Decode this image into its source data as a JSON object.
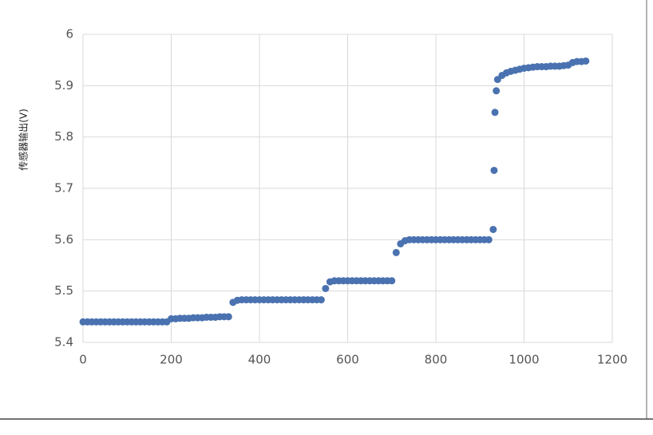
{
  "chart_data": {
    "type": "scatter",
    "y_label": "传感器输出(V)",
    "x": [
      0,
      10,
      20,
      30,
      40,
      50,
      60,
      70,
      80,
      90,
      100,
      110,
      120,
      130,
      140,
      150,
      160,
      170,
      180,
      190,
      200,
      210,
      220,
      230,
      240,
      250,
      260,
      270,
      280,
      290,
      300,
      310,
      320,
      330,
      340,
      350,
      360,
      370,
      380,
      390,
      400,
      410,
      420,
      430,
      440,
      450,
      460,
      470,
      480,
      490,
      500,
      510,
      520,
      530,
      540,
      550,
      560,
      570,
      580,
      590,
      600,
      610,
      620,
      630,
      640,
      650,
      660,
      670,
      680,
      690,
      700,
      710,
      720,
      730,
      740,
      750,
      760,
      770,
      780,
      790,
      800,
      810,
      820,
      830,
      840,
      850,
      860,
      870,
      880,
      890,
      900,
      910,
      920,
      930,
      932,
      934,
      937,
      940,
      950,
      960,
      970,
      980,
      990,
      1000,
      1010,
      1020,
      1030,
      1040,
      1050,
      1060,
      1070,
      1080,
      1090,
      1100,
      1110,
      1120,
      1130,
      1140
    ],
    "series": [
      {
        "color": "#4a72b0",
        "values": [
          5.44,
          5.44,
          5.44,
          5.44,
          5.44,
          5.44,
          5.44,
          5.44,
          5.44,
          5.44,
          5.44,
          5.44,
          5.44,
          5.44,
          5.44,
          5.44,
          5.44,
          5.44,
          5.44,
          5.44,
          5.446,
          5.446,
          5.447,
          5.447,
          5.447,
          5.448,
          5.448,
          5.448,
          5.449,
          5.449,
          5.449,
          5.45,
          5.45,
          5.45,
          5.478,
          5.482,
          5.483,
          5.483,
          5.483,
          5.483,
          5.483,
          5.483,
          5.483,
          5.483,
          5.483,
          5.483,
          5.483,
          5.483,
          5.483,
          5.483,
          5.483,
          5.483,
          5.483,
          5.483,
          5.483,
          5.505,
          5.518,
          5.52,
          5.52,
          5.52,
          5.52,
          5.52,
          5.52,
          5.52,
          5.52,
          5.52,
          5.52,
          5.52,
          5.52,
          5.52,
          5.52,
          5.575,
          5.592,
          5.598,
          5.6,
          5.6,
          5.6,
          5.6,
          5.6,
          5.6,
          5.6,
          5.6,
          5.6,
          5.6,
          5.6,
          5.6,
          5.6,
          5.6,
          5.6,
          5.6,
          5.6,
          5.6,
          5.6,
          5.62,
          5.735,
          5.848,
          5.89,
          5.912,
          5.92,
          5.925,
          5.928,
          5.93,
          5.932,
          5.934,
          5.935,
          5.936,
          5.937,
          5.937,
          5.937,
          5.938,
          5.938,
          5.938,
          5.939,
          5.94,
          5.945,
          5.947,
          5.947,
          5.948
        ]
      }
    ],
    "xlim": [
      0,
      1200
    ],
    "xticks": [
      0,
      200,
      400,
      600,
      800,
      1000,
      1200
    ],
    "ylim": [
      5.4,
      6
    ],
    "yticks": [
      5.4,
      5.5,
      5.6,
      5.7,
      5.8,
      5.9,
      6
    ],
    "grid": true
  }
}
